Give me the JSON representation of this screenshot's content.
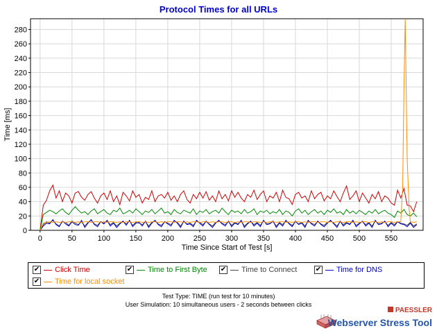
{
  "chart_data": {
    "type": "line",
    "title": "Protocol Times for all URLs",
    "xlabel": "Time Since Start of Test [s]",
    "ylabel": "Time [ms]",
    "xlim": [
      -15,
      600
    ],
    "ylim": [
      0,
      295
    ],
    "xticks": [
      0,
      50,
      100,
      150,
      200,
      250,
      300,
      350,
      400,
      450,
      500,
      550
    ],
    "yticks": [
      0,
      20,
      40,
      60,
      80,
      100,
      120,
      140,
      160,
      180,
      200,
      220,
      240,
      260,
      280
    ],
    "grid": true,
    "legend_position": "bottom",
    "series": [
      {
        "name": "Click Time",
        "color": "#cc0000",
        "x": [
          0,
          5,
          10,
          15,
          20,
          25,
          30,
          35,
          40,
          45,
          50,
          55,
          60,
          65,
          70,
          75,
          80,
          85,
          90,
          95,
          100,
          105,
          110,
          115,
          120,
          125,
          130,
          135,
          140,
          145,
          150,
          155,
          160,
          165,
          170,
          175,
          180,
          185,
          190,
          195,
          200,
          205,
          210,
          215,
          220,
          225,
          230,
          235,
          240,
          245,
          250,
          255,
          260,
          265,
          270,
          275,
          280,
          285,
          290,
          295,
          300,
          305,
          310,
          315,
          320,
          325,
          330,
          335,
          340,
          345,
          350,
          355,
          360,
          365,
          370,
          375,
          380,
          385,
          390,
          395,
          400,
          405,
          410,
          415,
          420,
          425,
          430,
          435,
          440,
          445,
          450,
          455,
          460,
          465,
          470,
          475,
          480,
          485,
          490,
          495,
          500,
          505,
          510,
          515,
          520,
          525,
          530,
          535,
          540,
          545,
          550,
          555,
          560,
          565,
          570,
          575,
          580,
          585,
          590
        ],
        "y": [
          0,
          35,
          42,
          55,
          63,
          45,
          55,
          40,
          52,
          48,
          38,
          52,
          54,
          46,
          42,
          50,
          54,
          45,
          38,
          48,
          52,
          43,
          55,
          40,
          48,
          36,
          53,
          48,
          41,
          55,
          46,
          50,
          38,
          46,
          43,
          55,
          40,
          48,
          50,
          45,
          53,
          42,
          48,
          40,
          50,
          55,
          43,
          38,
          50,
          44,
          53,
          45,
          54,
          42,
          48,
          40,
          55,
          44,
          50,
          41,
          55,
          46,
          53,
          45,
          40,
          50,
          46,
          56,
          43,
          50,
          55,
          40,
          48,
          45,
          53,
          40,
          56,
          46,
          44,
          36,
          50,
          53,
          45,
          48,
          40,
          55,
          44,
          50,
          53,
          41,
          48,
          44,
          55,
          47,
          40,
          52,
          62,
          43,
          48,
          55,
          40,
          52,
          45,
          38,
          50,
          44,
          54,
          40,
          48,
          45,
          38,
          35,
          56,
          45,
          58,
          35,
          34,
          26,
          40
        ]
      },
      {
        "name": "Time to First Byte",
        "color": "#008800",
        "x": [
          0,
          5,
          10,
          15,
          20,
          25,
          30,
          35,
          40,
          45,
          50,
          55,
          60,
          65,
          70,
          75,
          80,
          85,
          90,
          95,
          100,
          105,
          110,
          115,
          120,
          125,
          130,
          135,
          140,
          145,
          150,
          155,
          160,
          165,
          170,
          175,
          180,
          185,
          190,
          195,
          200,
          205,
          210,
          215,
          220,
          225,
          230,
          235,
          240,
          245,
          250,
          255,
          260,
          265,
          270,
          275,
          280,
          285,
          290,
          295,
          300,
          305,
          310,
          315,
          320,
          325,
          330,
          335,
          340,
          345,
          350,
          355,
          360,
          365,
          370,
          375,
          380,
          385,
          390,
          395,
          400,
          405,
          410,
          415,
          420,
          425,
          430,
          435,
          440,
          445,
          450,
          455,
          460,
          465,
          470,
          475,
          480,
          485,
          490,
          495,
          500,
          505,
          510,
          515,
          520,
          525,
          530,
          535,
          540,
          545,
          550,
          555,
          560,
          565,
          570,
          575,
          580,
          585,
          590
        ],
        "y": [
          0,
          22,
          25,
          28,
          26,
          23,
          27,
          30,
          25,
          22,
          28,
          33,
          28,
          24,
          26,
          22,
          27,
          30,
          23,
          26,
          29,
          24,
          22,
          28,
          26,
          31,
          23,
          25,
          28,
          24,
          30,
          26,
          22,
          27,
          25,
          29,
          23,
          27,
          31,
          24,
          26,
          22,
          29,
          25,
          23,
          28,
          26,
          24,
          30,
          22,
          27,
          25,
          29,
          23,
          26,
          28,
          24,
          31,
          26,
          22,
          28,
          25,
          27,
          23,
          29,
          24,
          26,
          30,
          22,
          27,
          25,
          28,
          23,
          26,
          24,
          29,
          22,
          27,
          25,
          20,
          27,
          30,
          24,
          28,
          22,
          26,
          29,
          24,
          27,
          22,
          28,
          25,
          30,
          24,
          26,
          22,
          29,
          24,
          27,
          23,
          28,
          25,
          22,
          27,
          24,
          29,
          23,
          26,
          28,
          24,
          22,
          18,
          27,
          24,
          29,
          22,
          20,
          24,
          19
        ]
      },
      {
        "name": "Time to Connect",
        "color": "#444444",
        "x": [
          0,
          5,
          10,
          15,
          20,
          25,
          30,
          35,
          40,
          45,
          50,
          55,
          60,
          65,
          70,
          75,
          80,
          85,
          90,
          95,
          100,
          105,
          110,
          115,
          120,
          125,
          130,
          135,
          140,
          145,
          150,
          155,
          160,
          165,
          170,
          175,
          180,
          185,
          190,
          195,
          200,
          205,
          210,
          215,
          220,
          225,
          230,
          235,
          240,
          245,
          250,
          255,
          260,
          265,
          270,
          275,
          280,
          285,
          290,
          295,
          300,
          305,
          310,
          315,
          320,
          325,
          330,
          335,
          340,
          345,
          350,
          355,
          360,
          365,
          370,
          375,
          380,
          385,
          390,
          395,
          400,
          405,
          410,
          415,
          420,
          425,
          430,
          435,
          440,
          445,
          450,
          455,
          460,
          465,
          470,
          475,
          480,
          485,
          490,
          495,
          500,
          505,
          510,
          515,
          520,
          525,
          530,
          535,
          540,
          545,
          550,
          555,
          560,
          565,
          570,
          575,
          580,
          585,
          590
        ],
        "y": [
          0,
          8,
          12,
          10,
          14,
          9,
          6,
          12,
          11,
          7,
          13,
          10,
          8,
          12,
          6,
          11,
          14,
          9,
          7,
          12,
          10,
          13,
          8,
          11,
          6,
          10,
          12,
          9,
          13,
          7,
          11,
          10,
          8,
          12,
          6,
          11,
          13,
          9,
          7,
          12,
          10,
          8,
          13,
          11,
          6,
          12,
          9,
          10,
          7,
          13,
          11,
          8,
          12,
          9,
          6,
          11,
          13,
          10,
          8,
          12,
          7,
          11,
          9,
          13,
          6,
          10,
          12,
          8,
          11,
          7,
          13,
          9,
          10,
          12,
          6,
          11,
          8,
          13,
          10,
          7,
          12,
          9,
          11,
          6,
          13,
          10,
          8,
          12,
          9,
          7,
          11,
          13,
          10,
          6,
          12,
          8,
          11,
          9,
          13,
          7,
          10,
          12,
          8,
          11,
          6,
          13,
          9,
          10,
          12,
          7,
          11,
          8,
          12,
          10,
          9,
          7,
          11,
          6,
          9
        ]
      },
      {
        "name": "Time for DNS",
        "color": "#0000cc",
        "x": [
          0,
          5,
          10,
          15,
          20,
          25,
          30,
          35,
          40,
          45,
          50,
          55,
          60,
          65,
          70,
          75,
          80,
          85,
          90,
          95,
          100,
          105,
          110,
          115,
          120,
          125,
          130,
          135,
          140,
          145,
          150,
          155,
          160,
          165,
          170,
          175,
          180,
          185,
          190,
          195,
          200,
          205,
          210,
          215,
          220,
          225,
          230,
          235,
          240,
          245,
          250,
          255,
          260,
          265,
          270,
          275,
          280,
          285,
          290,
          295,
          300,
          305,
          310,
          315,
          320,
          325,
          330,
          335,
          340,
          345,
          350,
          355,
          360,
          365,
          370,
          375,
          380,
          385,
          390,
          395,
          400,
          405,
          410,
          415,
          420,
          425,
          430,
          435,
          440,
          445,
          450,
          455,
          460,
          465,
          470,
          475,
          480,
          485,
          490,
          495,
          500,
          505,
          510,
          515,
          520,
          525,
          530,
          535,
          540,
          545,
          550,
          555,
          560,
          565,
          570,
          575,
          580,
          585,
          590
        ],
        "y": [
          0,
          6,
          10,
          9,
          15,
          8,
          5,
          13,
          9,
          6,
          12,
          8,
          7,
          14,
          4,
          10,
          15,
          8,
          5,
          12,
          9,
          14,
          6,
          10,
          4,
          9,
          13,
          7,
          14,
          5,
          10,
          11,
          6,
          13,
          4,
          10,
          14,
          8,
          5,
          12,
          9,
          6,
          14,
          10,
          4,
          13,
          8,
          9,
          5,
          14,
          10,
          6,
          13,
          8,
          4,
          10,
          14,
          9,
          6,
          13,
          5,
          10,
          8,
          14,
          4,
          9,
          13,
          6,
          10,
          5,
          14,
          8,
          9,
          13,
          4,
          10,
          6,
          14,
          9,
          5,
          13,
          8,
          10,
          4,
          14,
          9,
          6,
          13,
          8,
          5,
          10,
          14,
          9,
          4,
          13,
          6,
          10,
          8,
          14,
          5,
          9,
          13,
          6,
          10,
          4,
          14,
          8,
          9,
          13,
          5,
          10,
          6,
          12,
          9,
          8,
          5,
          10,
          4,
          8
        ]
      },
      {
        "name": "Time for local socket",
        "color": "#ff8c00",
        "x": [
          0,
          5,
          10,
          15,
          20,
          25,
          30,
          35,
          40,
          45,
          50,
          55,
          60,
          65,
          70,
          75,
          80,
          85,
          90,
          95,
          100,
          105,
          110,
          115,
          120,
          125,
          130,
          135,
          140,
          145,
          150,
          155,
          160,
          165,
          170,
          175,
          180,
          185,
          190,
          195,
          200,
          205,
          210,
          215,
          220,
          225,
          230,
          235,
          240,
          245,
          250,
          255,
          260,
          265,
          270,
          275,
          280,
          285,
          290,
          295,
          300,
          305,
          310,
          315,
          320,
          325,
          330,
          335,
          340,
          345,
          350,
          355,
          360,
          365,
          370,
          375,
          380,
          385,
          390,
          395,
          400,
          405,
          410,
          415,
          420,
          425,
          430,
          435,
          440,
          445,
          450,
          455,
          460,
          465,
          470,
          475,
          480,
          485,
          490,
          495,
          500,
          505,
          510,
          515,
          520,
          525,
          530,
          535,
          540,
          545,
          550,
          555,
          560,
          565,
          568,
          570,
          572,
          575,
          578,
          580,
          585,
          590
        ],
        "y": [
          0,
          10,
          11,
          12,
          11,
          12,
          11,
          12,
          11,
          12,
          12,
          11,
          12,
          11,
          12,
          12,
          11,
          12,
          12,
          11,
          12,
          11,
          12,
          12,
          11,
          12,
          11,
          12,
          12,
          11,
          12,
          12,
          11,
          12,
          11,
          12,
          12,
          11,
          12,
          11,
          12,
          12,
          11,
          12,
          12,
          11,
          12,
          11,
          12,
          12,
          11,
          12,
          12,
          11,
          12,
          11,
          12,
          12,
          11,
          12,
          12,
          11,
          12,
          11,
          12,
          12,
          11,
          12,
          12,
          11,
          12,
          11,
          12,
          12,
          11,
          12,
          12,
          11,
          12,
          11,
          12,
          12,
          11,
          12,
          11,
          12,
          12,
          11,
          12,
          12,
          11,
          12,
          11,
          12,
          12,
          11,
          12,
          12,
          11,
          12,
          11,
          12,
          12,
          11,
          12,
          12,
          11,
          12,
          11,
          12,
          12,
          11,
          12,
          12,
          60,
          200,
          300,
          100,
          30,
          12,
          11,
          12
        ]
      }
    ]
  },
  "legend": {
    "items": [
      {
        "label": "Click Time",
        "color": "#cc0000",
        "checked": "✔"
      },
      {
        "label": "Time to First Byte",
        "color": "#008800",
        "checked": "✔"
      },
      {
        "label": "Time to Connect",
        "color": "#444444",
        "checked": "✔"
      },
      {
        "label": "Time for DNS",
        "color": "#0000cc",
        "checked": "✔"
      },
      {
        "label": "Time for local socket",
        "color": "#ff8c00",
        "checked": "✔"
      }
    ]
  },
  "info": {
    "test_type": "Test Type: TIME (run test for 10 minutes)",
    "user_simulation": "User Simulation: 10 simultaneous users - 2 seconds between clicks"
  },
  "brand": {
    "company": "PAESSLER",
    "product": "Webserver Stress Tool"
  }
}
